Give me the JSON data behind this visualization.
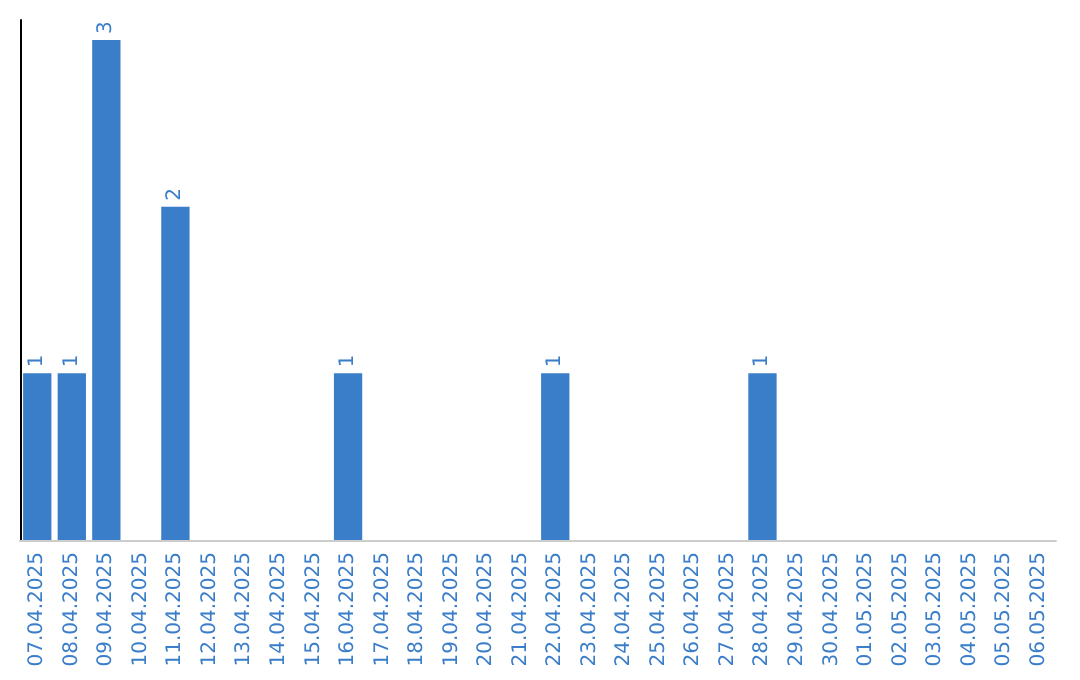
{
  "chart_data": {
    "type": "bar",
    "categories": [
      "07.04.2025",
      "08.04.2025",
      "09.04.2025",
      "10.04.2025",
      "11.04.2025",
      "12.04.2025",
      "13.04.2025",
      "14.04.2025",
      "15.04.2025",
      "16.04.2025",
      "17.04.2025",
      "18.04.2025",
      "19.04.2025",
      "20.04.2025",
      "21.04.2025",
      "22.04.2025",
      "23.04.2025",
      "24.04.2025",
      "25.04.2025",
      "26.04.2025",
      "27.04.2025",
      "28.04.2025",
      "29.04.2025",
      "30.04.2025",
      "01.05.2025",
      "02.05.2025",
      "03.05.2025",
      "04.05.2025",
      "05.05.2025",
      "06.05.2025"
    ],
    "values": [
      1,
      1,
      3,
      0,
      2,
      0,
      0,
      0,
      0,
      1,
      0,
      0,
      0,
      0,
      0,
      1,
      0,
      0,
      0,
      0,
      0,
      1,
      0,
      0,
      0,
      0,
      0,
      0,
      0,
      0
    ],
    "value_labels": [
      "1",
      "1",
      "3",
      null,
      "2",
      null,
      null,
      null,
      null,
      "1",
      null,
      null,
      null,
      null,
      null,
      "1",
      null,
      null,
      null,
      null,
      null,
      "1",
      null,
      null,
      null,
      null,
      null,
      null,
      null,
      null
    ],
    "color": "#3a7dc9",
    "tick_labels": "x"
  }
}
